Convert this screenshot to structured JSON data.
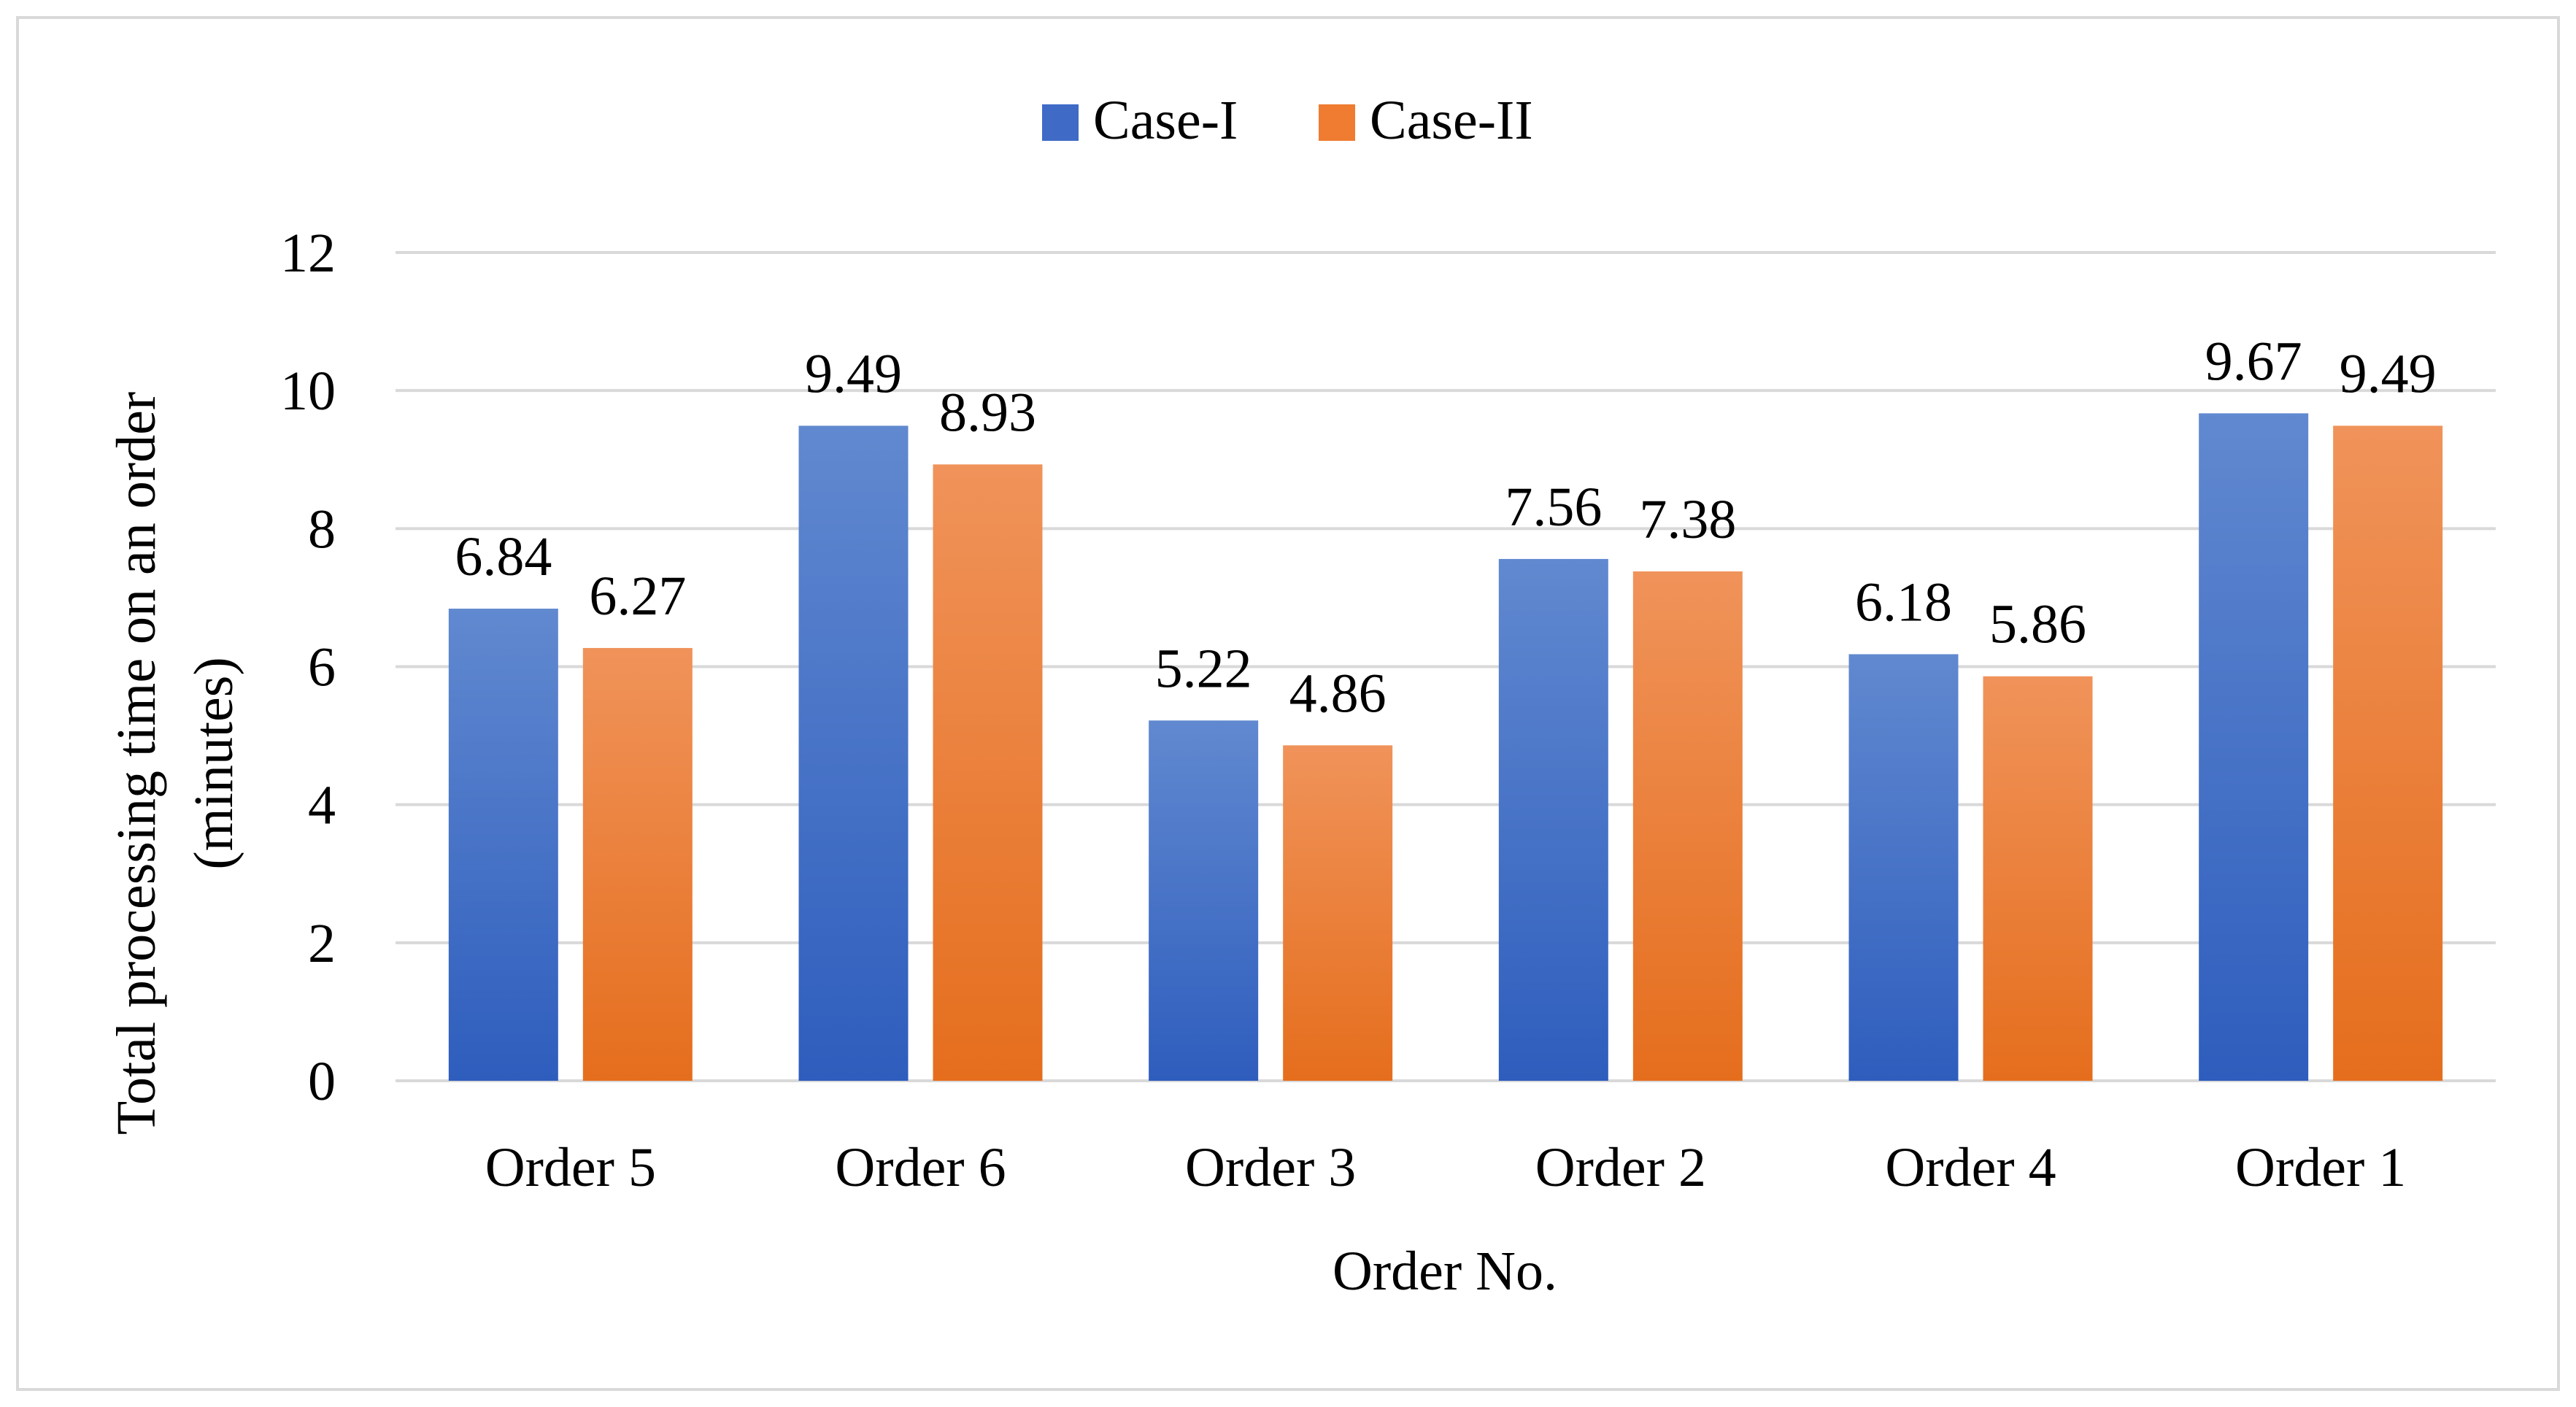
{
  "chart_data": {
    "type": "bar",
    "title": "",
    "xlabel": "Order No.",
    "ylabel_lines": [
      "Total processing time on an order",
      "(minutes)"
    ],
    "categories": [
      "Order 5",
      "Order 6",
      "Order 3",
      "Order 2",
      "Order 4",
      "Order 1"
    ],
    "series": [
      {
        "name": "Case-I",
        "values": [
          6.84,
          9.49,
          5.22,
          7.56,
          6.18,
          9.67
        ],
        "labels": [
          "6.84",
          "9.49",
          "5.22",
          "7.56",
          "6.18",
          "9.67"
        ],
        "color_top": "#6189d0",
        "color_bottom": "#2e5dbd",
        "legend_color": "#3f6bc7"
      },
      {
        "name": "Case-II",
        "values": [
          6.27,
          8.93,
          4.86,
          7.38,
          5.86,
          9.49
        ],
        "labels": [
          "6.27",
          "8.93",
          "4.86",
          "7.38",
          "5.86",
          "9.49"
        ],
        "color_top": "#f0935a",
        "color_bottom": "#e56e1d",
        "legend_color": "#ef7c31"
      }
    ],
    "yticks": [
      "0",
      "2",
      "4",
      "6",
      "8",
      "10",
      "12"
    ],
    "ylim": [
      0,
      12
    ],
    "ytick_step": 2,
    "grid": true,
    "legend_position": "top-center",
    "grid_color": "#d9d9d9"
  }
}
